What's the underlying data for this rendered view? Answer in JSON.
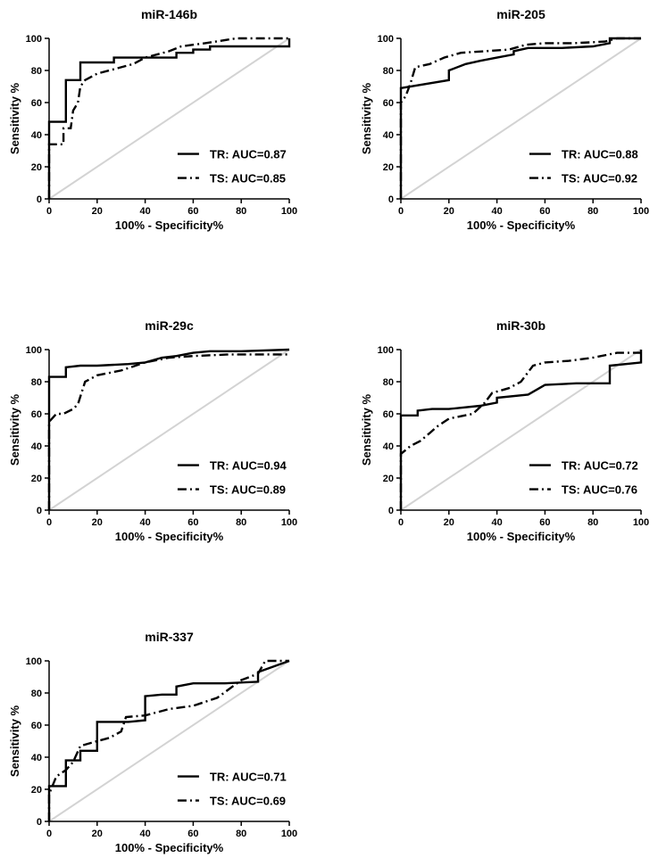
{
  "chart_data": [
    {
      "type": "line",
      "title": "miR-146b",
      "xlabel": "100% - Specificity%",
      "ylabel": "Sensitivity %",
      "xlim": [
        0,
        100
      ],
      "ylim": [
        0,
        100
      ],
      "xticks": [
        "0",
        "20",
        "40",
        "60",
        "80",
        "100"
      ],
      "yticks": [
        "0",
        "20",
        "40",
        "60",
        "80",
        "100"
      ],
      "legend_position": "bottom-right",
      "reference_line": {
        "x": [
          0,
          100
        ],
        "y": [
          0,
          100
        ],
        "color": "#d3d3d3"
      },
      "series": [
        {
          "name": "TR: AUC=0.87",
          "style": "solid",
          "x": [
            0,
            0,
            7,
            7,
            13,
            13,
            27,
            27,
            40,
            53,
            53,
            60,
            60,
            67,
            67,
            100,
            100
          ],
          "y": [
            0,
            48,
            48,
            74,
            74,
            85,
            85,
            88,
            88,
            88,
            91,
            91,
            93,
            93,
            95,
            95,
            100
          ]
        },
        {
          "name": "TS: AUC=0.85",
          "style": "dashdot",
          "x": [
            0,
            0,
            3,
            6,
            6,
            9,
            10,
            12,
            13,
            15,
            20,
            25,
            30,
            35,
            40,
            50,
            55,
            65,
            78,
            100
          ],
          "y": [
            0,
            34,
            34,
            34,
            44,
            44,
            55,
            60,
            70,
            74,
            78,
            80,
            82,
            84,
            88,
            92,
            95,
            97,
            100,
            100
          ]
        }
      ]
    },
    {
      "type": "line",
      "title": "miR-205",
      "xlabel": "100% - Specificity%",
      "ylabel": "Sensitivity %",
      "xlim": [
        0,
        100
      ],
      "ylim": [
        0,
        100
      ],
      "xticks": [
        "0",
        "20",
        "40",
        "60",
        "80",
        "100"
      ],
      "yticks": [
        "0",
        "20",
        "40",
        "60",
        "80",
        "100"
      ],
      "legend_position": "bottom-right",
      "reference_line": {
        "x": [
          0,
          100
        ],
        "y": [
          0,
          100
        ],
        "color": "#d3d3d3"
      },
      "series": [
        {
          "name": "TR: AUC=0.88",
          "style": "solid",
          "x": [
            0,
            0,
            20,
            20,
            27,
            33,
            40,
            47,
            47,
            53,
            67,
            80,
            87,
            87,
            100
          ],
          "y": [
            0,
            69,
            74,
            80,
            84,
            86,
            88,
            90,
            92,
            94,
            94,
            95,
            97,
            100,
            100
          ]
        },
        {
          "name": "TS: AUC=0.92",
          "style": "dashdot",
          "x": [
            0,
            0,
            2,
            4,
            6,
            12,
            18,
            25,
            35,
            45,
            52,
            60,
            72,
            85,
            90,
            100
          ],
          "y": [
            0,
            60,
            64,
            72,
            82,
            84,
            88,
            91,
            92,
            93,
            96,
            97,
            97,
            98,
            100,
            100
          ]
        }
      ]
    },
    {
      "type": "line",
      "title": "miR-29c",
      "xlabel": "100% - Specificity%",
      "ylabel": "Sensitivity %",
      "xlim": [
        0,
        100
      ],
      "ylim": [
        0,
        100
      ],
      "xticks": [
        "0",
        "20",
        "40",
        "60",
        "80",
        "100"
      ],
      "yticks": [
        "0",
        "20",
        "40",
        "60",
        "80",
        "100"
      ],
      "legend_position": "bottom-right",
      "reference_line": {
        "x": [
          0,
          100
        ],
        "y": [
          0,
          100
        ],
        "color": "#d3d3d3"
      },
      "series": [
        {
          "name": "TR: AUC=0.94",
          "style": "solid",
          "x": [
            0,
            0,
            7,
            7,
            13,
            20,
            33,
            40,
            47,
            53,
            60,
            67,
            80,
            100
          ],
          "y": [
            0,
            83,
            83,
            89,
            90,
            90,
            91,
            92,
            95,
            96,
            98,
            99,
            99,
            100
          ]
        },
        {
          "name": "TS: AUC=0.89",
          "style": "dashdot",
          "x": [
            0,
            0,
            3,
            6,
            10,
            12,
            15,
            20,
            30,
            40,
            50,
            60,
            75,
            85,
            100
          ],
          "y": [
            0,
            55,
            60,
            60,
            63,
            66,
            80,
            84,
            87,
            92,
            95,
            96,
            97,
            97,
            97
          ]
        }
      ]
    },
    {
      "type": "line",
      "title": "miR-30b",
      "xlabel": "100% - Specificity%",
      "ylabel": "Sensitivity %",
      "xlim": [
        0,
        100
      ],
      "ylim": [
        0,
        100
      ],
      "xticks": [
        "0",
        "20",
        "40",
        "60",
        "80",
        "100"
      ],
      "yticks": [
        "0",
        "20",
        "40",
        "60",
        "80",
        "100"
      ],
      "legend_position": "bottom-right",
      "reference_line": {
        "x": [
          0,
          100
        ],
        "y": [
          0,
          100
        ],
        "color": "#d3d3d3"
      },
      "series": [
        {
          "name": "TR: AUC=0.72",
          "style": "solid",
          "x": [
            0,
            0,
            7,
            7,
            13,
            20,
            33,
            40,
            40,
            53,
            60,
            73,
            87,
            87,
            100,
            100
          ],
          "y": [
            0,
            59,
            59,
            62,
            63,
            63,
            65,
            67,
            70,
            72,
            78,
            79,
            79,
            90,
            92,
            100
          ]
        },
        {
          "name": "TS: AUC=0.76",
          "style": "dashdot",
          "x": [
            0,
            0,
            4,
            8,
            12,
            15,
            20,
            30,
            35,
            38,
            45,
            50,
            55,
            60,
            70,
            80,
            90,
            100
          ],
          "y": [
            0,
            35,
            40,
            43,
            48,
            52,
            57,
            60,
            67,
            73,
            76,
            80,
            90,
            92,
            93,
            95,
            98,
            98
          ]
        }
      ]
    },
    {
      "type": "line",
      "title": "miR-337",
      "xlabel": "100% - Specificity%",
      "ylabel": "Sensitivity %",
      "xlim": [
        0,
        100
      ],
      "ylim": [
        0,
        100
      ],
      "xticks": [
        "0",
        "20",
        "40",
        "60",
        "80",
        "100"
      ],
      "yticks": [
        "0",
        "20",
        "40",
        "60",
        "80",
        "100"
      ],
      "legend_position": "bottom-right",
      "reference_line": {
        "x": [
          0,
          100
        ],
        "y": [
          0,
          100
        ],
        "color": "#d3d3d3"
      },
      "series": [
        {
          "name": "TR: AUC=0.71",
          "style": "solid",
          "x": [
            0,
            0,
            7,
            7,
            13,
            13,
            20,
            20,
            33,
            40,
            40,
            47,
            53,
            53,
            60,
            73,
            87,
            87,
            100
          ],
          "y": [
            0,
            22,
            22,
            38,
            38,
            44,
            44,
            62,
            62,
            63,
            78,
            79,
            79,
            84,
            86,
            86,
            87,
            93,
            100
          ]
        },
        {
          "name": "TS: AUC=0.69",
          "style": "dashdot",
          "x": [
            0,
            0,
            3,
            7,
            10,
            13,
            20,
            25,
            30,
            32,
            40,
            50,
            60,
            70,
            80,
            87,
            90,
            100
          ],
          "y": [
            0,
            17,
            28,
            32,
            37,
            47,
            50,
            52,
            56,
            65,
            66,
            70,
            72,
            77,
            88,
            92,
            100,
            100
          ]
        }
      ]
    }
  ]
}
